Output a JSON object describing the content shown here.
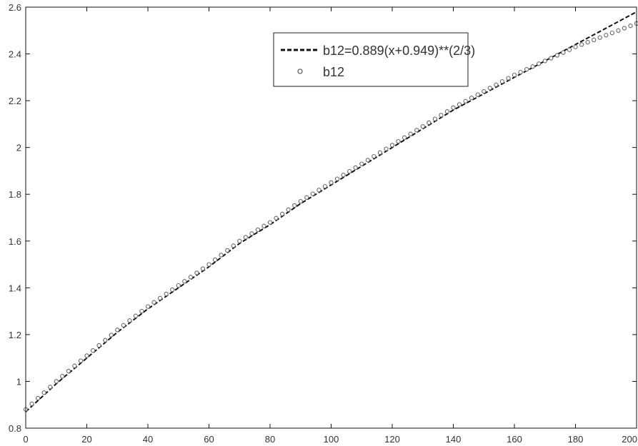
{
  "chart_data": {
    "type": "line",
    "title": "",
    "xlabel": "",
    "ylabel": "",
    "xlim": [
      0,
      200
    ],
    "ylim": [
      0.8,
      2.6
    ],
    "grid": false,
    "legend_position": "top-center",
    "xticks": [
      0,
      20,
      40,
      60,
      80,
      100,
      120,
      140,
      160,
      180,
      200
    ],
    "xtick_labels": [
      "0",
      "20",
      "40",
      "60",
      "80",
      "100",
      "120",
      "140",
      "160",
      "180",
      "200"
    ],
    "yticks": [
      0.8,
      1.0,
      1.2,
      1.4,
      1.6,
      1.8,
      2.0,
      2.2,
      2.4,
      2.6
    ],
    "ytick_labels": [
      "0.8",
      "1",
      "1.2",
      "1.4",
      "1.6",
      "1.8",
      "2",
      "2.2",
      "2.4",
      "2.6"
    ],
    "series": [
      {
        "name": "b12=0.889(x+0.949)**(2/3)",
        "style": "dashed-line",
        "color": "#111111",
        "x": [
          0,
          10,
          20,
          30,
          40,
          50,
          60,
          70,
          80,
          90,
          100,
          110,
          120,
          130,
          140,
          150,
          160,
          170,
          180,
          190,
          200
        ],
        "y": [
          0.87,
          0.99,
          1.1,
          1.21,
          1.31,
          1.4,
          1.49,
          1.59,
          1.67,
          1.76,
          1.84,
          1.92,
          2.0,
          2.08,
          2.16,
          2.23,
          2.3,
          2.37,
          2.44,
          2.51,
          2.58
        ]
      },
      {
        "name": "b12",
        "style": "circle-markers",
        "color": "#666666",
        "x": [
          0,
          10,
          20,
          30,
          40,
          50,
          60,
          70,
          80,
          90,
          100,
          110,
          120,
          130,
          140,
          150,
          160,
          170,
          180,
          190,
          200
        ],
        "y": [
          0.88,
          1.0,
          1.11,
          1.22,
          1.32,
          1.41,
          1.5,
          1.6,
          1.68,
          1.77,
          1.85,
          1.93,
          2.01,
          2.09,
          2.17,
          2.24,
          2.31,
          2.37,
          2.43,
          2.48,
          2.53
        ]
      }
    ]
  }
}
